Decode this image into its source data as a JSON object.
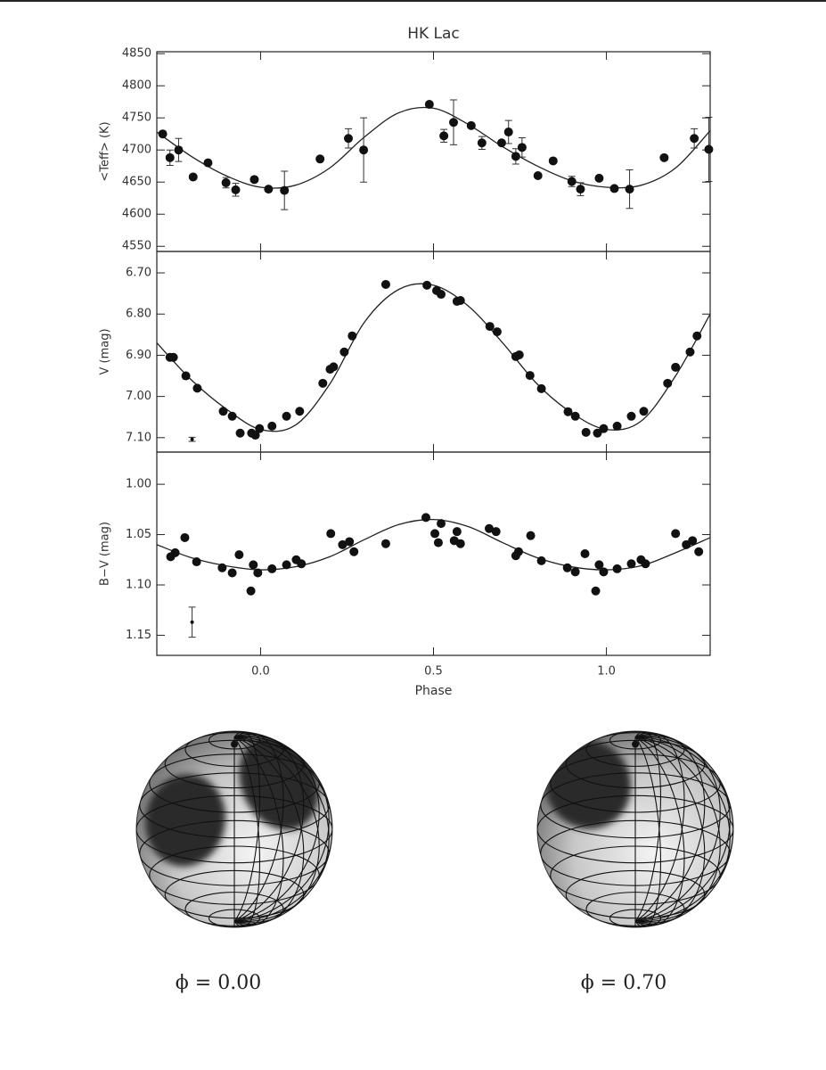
{
  "chart_data": [
    {
      "type": "scatter",
      "title": "HK Lac",
      "y_label": "<Teff> (K)",
      "xlim": [
        -0.3,
        1.3
      ],
      "ylim": [
        4542,
        4853
      ],
      "yticks": [
        4550,
        4600,
        4650,
        4700,
        4750,
        4800,
        4850
      ],
      "color": "#111",
      "x": [
        -0.283,
        -0.262,
        -0.237,
        -0.195,
        -0.152,
        -0.1,
        -0.072,
        -0.018,
        0.023,
        0.069,
        0.172,
        0.254,
        0.298,
        0.488,
        0.53,
        0.558,
        0.609,
        0.64,
        0.697,
        0.717,
        0.738,
        0.756,
        0.802,
        0.846,
        0.9,
        0.925,
        0.979,
        1.023,
        1.067,
        1.167,
        1.254,
        1.296
      ],
      "values": [
        4725,
        4688,
        4700,
        4658,
        4680,
        4649,
        4638,
        4654,
        4639,
        4637,
        4686,
        4718,
        4700,
        4771,
        4722,
        4743,
        4738,
        4711,
        4711,
        4728,
        4690,
        4704,
        4660,
        4683,
        4651,
        4639,
        4656,
        4640,
        4639,
        4688,
        4718,
        4701
      ],
      "errors": [
        null,
        12,
        18,
        null,
        null,
        8,
        10,
        null,
        null,
        30,
        null,
        15,
        50,
        null,
        10,
        35,
        null,
        10,
        null,
        18,
        12,
        15,
        null,
        null,
        8,
        10,
        null,
        null,
        30,
        null,
        15,
        50
      ],
      "model": {
        "x": [
          -0.3,
          -0.2,
          -0.1,
          0.0,
          0.1,
          0.2,
          0.3,
          0.4,
          0.5,
          0.6,
          0.7,
          0.8,
          0.9,
          1.0,
          1.1,
          1.2,
          1.3
        ],
        "y": [
          4728,
          4690,
          4660,
          4642,
          4645,
          4672,
          4720,
          4758,
          4765,
          4740,
          4705,
          4675,
          4652,
          4642,
          4645,
          4672,
          4730
        ]
      }
    },
    {
      "type": "scatter",
      "y_label": "V (mag)",
      "xlim": [
        -0.3,
        1.3
      ],
      "ylim": [
        7.135,
        6.648
      ],
      "yticks": [
        {
          "value": 6.7,
          "label": "6.70"
        },
        {
          "value": 6.8,
          "label": "6.80"
        },
        {
          "value": 6.9,
          "label": "6.90"
        },
        {
          "value": 7.0,
          "label": "7.00"
        },
        {
          "value": 7.1,
          "label": "7.10"
        }
      ],
      "color": "#111",
      "x": [
        -0.262,
        -0.252,
        -0.216,
        -0.183,
        -0.108,
        -0.082,
        -0.059,
        -0.026,
        -0.015,
        -0.003,
        0.033,
        0.075,
        0.113,
        0.18,
        0.201,
        0.211,
        0.242,
        0.265,
        0.362,
        0.481,
        0.509,
        0.522,
        0.568,
        0.578,
        0.663,
        0.684,
        0.738,
        0.748,
        0.779,
        0.812,
        0.889,
        0.91,
        0.941,
        0.974,
        0.992,
        1.031,
        1.072,
        1.108,
        1.177,
        1.2,
        1.242,
        1.262
      ],
      "values": [
        6.905,
        6.905,
        6.95,
        6.98,
        7.036,
        7.048,
        7.089,
        7.089,
        7.094,
        7.078,
        7.072,
        7.048,
        7.036,
        6.968,
        6.934,
        6.928,
        6.892,
        6.853,
        6.728,
        6.73,
        6.743,
        6.752,
        6.769,
        6.767,
        6.83,
        6.843,
        6.903,
        6.899,
        6.949,
        6.981,
        7.037,
        7.048,
        7.087,
        7.089,
        7.078,
        7.072,
        7.048,
        7.036,
        6.968,
        6.929,
        6.892,
        6.853
      ],
      "sample_error": {
        "x": -0.198,
        "y": 7.104,
        "error": 0.005
      },
      "model": {
        "x": [
          -0.3,
          -0.2,
          -0.1,
          0.0,
          0.1,
          0.2,
          0.3,
          0.4,
          0.5,
          0.6,
          0.7,
          0.8,
          0.9,
          1.0,
          1.1,
          1.2,
          1.3
        ],
        "y": [
          6.87,
          6.96,
          7.03,
          7.08,
          7.07,
          6.97,
          6.82,
          6.74,
          6.73,
          6.78,
          6.87,
          6.97,
          7.04,
          7.08,
          7.06,
          6.95,
          6.8
        ]
      }
    },
    {
      "type": "scatter",
      "y_label": "B−V (mag)",
      "x_label": "Phase",
      "xlim": [
        -0.3,
        1.3
      ],
      "ylim": [
        1.17,
        0.968
      ],
      "xticks": [
        {
          "value": 0,
          "label": "0.0"
        },
        0.5,
        {
          "value": 1,
          "label": "1.0"
        }
      ],
      "yticks": [
        {
          "value": 1.0,
          "label": "1.00"
        },
        1.05,
        {
          "value": 1.1,
          "label": "1.10"
        },
        1.15
      ],
      "color": "#111",
      "x": [
        -0.26,
        -0.247,
        -0.219,
        -0.185,
        -0.111,
        -0.082,
        -0.062,
        -0.028,
        -0.021,
        -0.008,
        0.033,
        0.075,
        0.103,
        0.118,
        0.203,
        0.237,
        0.257,
        0.27,
        0.362,
        0.478,
        0.504,
        0.514,
        0.522,
        0.56,
        0.568,
        0.578,
        0.661,
        0.681,
        0.738,
        0.746,
        0.781,
        0.812,
        0.887,
        0.91,
        0.938,
        0.969,
        0.979,
        0.992,
        1.031,
        1.072,
        1.1,
        1.113,
        1.2,
        1.231,
        1.249,
        1.267
      ],
      "values": [
        1.072,
        1.068,
        1.053,
        1.077,
        1.083,
        1.088,
        1.07,
        1.106,
        1.08,
        1.088,
        1.084,
        1.08,
        1.075,
        1.079,
        1.049,
        1.06,
        1.057,
        1.067,
        1.059,
        1.033,
        1.049,
        1.058,
        1.039,
        1.056,
        1.047,
        1.059,
        1.044,
        1.047,
        1.071,
        1.067,
        1.051,
        1.076,
        1.083,
        1.087,
        1.069,
        1.106,
        1.08,
        1.087,
        1.084,
        1.079,
        1.075,
        1.079,
        1.049,
        1.06,
        1.056,
        1.067
      ],
      "sample_error": {
        "x": -0.198,
        "y": 1.137,
        "error": 0.015
      },
      "model": {
        "x": [
          -0.3,
          -0.2,
          -0.1,
          0.0,
          0.1,
          0.2,
          0.3,
          0.4,
          0.5,
          0.6,
          0.7,
          0.8,
          0.9,
          1.0,
          1.1,
          1.2,
          1.3
        ],
        "y": [
          1.06,
          1.073,
          1.081,
          1.085,
          1.082,
          1.072,
          1.055,
          1.04,
          1.035,
          1.042,
          1.058,
          1.073,
          1.082,
          1.085,
          1.081,
          1.068,
          1.053
        ]
      }
    }
  ],
  "captions": [
    "ϕ = 0.00",
    "ϕ = 0.70"
  ]
}
